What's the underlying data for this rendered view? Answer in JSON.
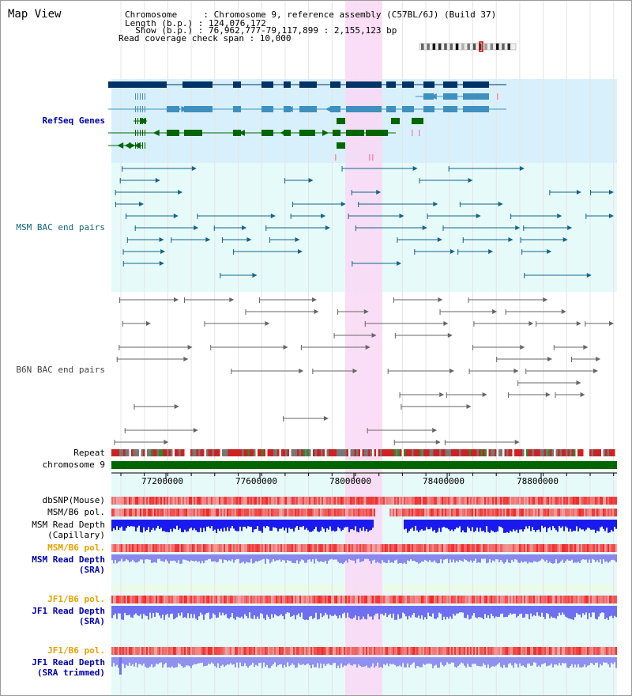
{
  "title": "Map View",
  "header": {
    "line1": "Chromosome     : Chromosome 9, reference assembly (C57BL/6J) (Build 37)",
    "line2": "Length (b.p.) : 124,076,172",
    "line3": "  Show (b.p.) : 76,962,777-79,117,899 : 2,155,123 bp",
    "line4": "Read coverage check span : 10,000"
  },
  "tracks": {
    "refseq": "RefSeq Genes",
    "msm_bac": "MSM BAC end pairs",
    "b6n_bac": "B6N BAC end pairs",
    "repeat": "Repeat",
    "chromosome": "chromosome 9",
    "dbsnp": "dbSNP(Mouse)",
    "msm_b6_pol_1": "MSM/B6 pol.",
    "msm_depth_cap_1": "MSM Read Depth",
    "msm_depth_cap_2": "(Capillary)",
    "msm_b6_pol_2": "MSM/B6 pol.",
    "msm_depth_sra_1": "MSM Read Depth",
    "msm_depth_sra_2": "(SRA)",
    "jf1_b6_pol_1": "JF1/B6 pol.",
    "jf1_depth_sra_1": "JF1 Read Depth",
    "jf1_depth_sra_2": "(SRA)",
    "jf1_b6_pol_2": "JF1/B6 pol.",
    "jf1_depth_trim_1": "JF1 Read Depth",
    "jf1_depth_trim_2": "(SRA trimmed)"
  },
  "axis": {
    "ticks": [
      "77200000",
      "77600000",
      "78000000",
      "78400000",
      "78800000"
    ]
  },
  "colors": {
    "refseq_bg": "#d8f0fb",
    "bac_bg": "#e6fafa",
    "highlight": "#f9d8f4",
    "dark_navy": "#003366",
    "steel_blue": "#3f8fbf",
    "green": "#006600",
    "bac_line": "#116688",
    "gray": "#666666",
    "label_blue": "#0000aa",
    "label_teal": "#116677",
    "label_orange": "#e8a000"
  }
}
